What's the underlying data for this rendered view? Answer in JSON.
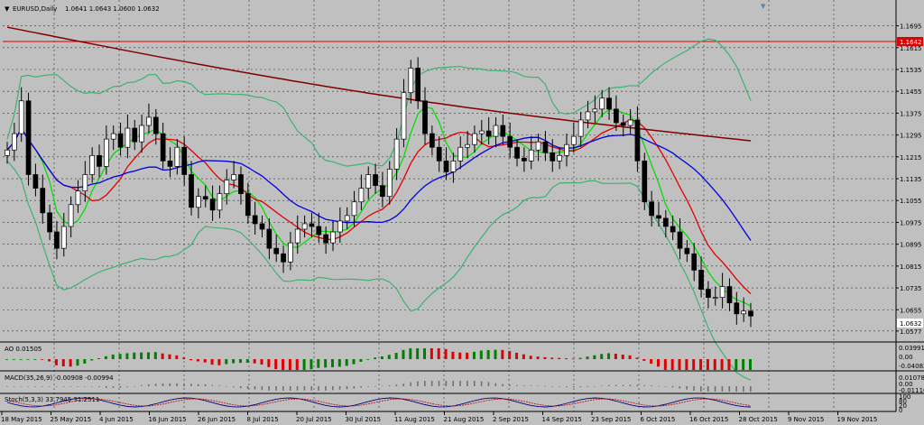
{
  "window": {
    "title": "EURUSD,Daily",
    "ohlc": "1.0641 1.0643 1.0600 1.0632"
  },
  "price_axis": {
    "ticks": [
      "1.1695",
      "1.1615",
      "1.1535",
      "1.1455",
      "1.1375",
      "1.1295",
      "1.1215",
      "1.1135",
      "1.1055",
      "1.0975",
      "1.0895",
      "1.0815",
      "1.0735",
      "1.0655",
      "1.0577"
    ],
    "hline_label": "1.1642",
    "current_label": "1.0632"
  },
  "date_axis": {
    "labels": [
      "18 May 2015",
      "25 May 2015",
      "4 Jun 2015",
      "16 Jun 2015",
      "26 Jun 2015",
      "8 Jul 2015",
      "20 Jul 2015",
      "30 Jul 2015",
      "11 Aug 2015",
      "21 Aug 2015",
      "2 Sep 2015",
      "14 Sep 2015",
      "23 Sep 2015",
      "6 Oct 2015",
      "16 Oct 2015",
      "28 Oct 2015",
      "9 Nov 2015",
      "19 Nov 2015"
    ]
  },
  "indicators": {
    "ao": {
      "title": "AO 0.01505",
      "ticks": [
        "0.03991",
        "0.00",
        "-0.04082"
      ]
    },
    "macd": {
      "title": "MACD(35,26,9) -0.00908 -0.00994",
      "ticks": [
        "0.01078",
        "0.00",
        "-0.01116"
      ]
    },
    "stoch": {
      "title": "Stoch(5,3,3) 33.7945 31.2511",
      "ticks": [
        "100",
        "80",
        "20",
        "0"
      ]
    }
  },
  "colors": {
    "background": "#c0c0c0",
    "bull": "#ffffff",
    "bear": "#000000",
    "bollinger": "#3cb371",
    "ma_fast": "#00e000",
    "ma_mid": "#e00000",
    "ma_slow": "#0000e0",
    "ma_long": "#800000",
    "hline": "#e00000",
    "ao_up": "#008000",
    "ao_down": "#e00000"
  },
  "chart_data": {
    "type": "candlestick",
    "symbol": "EURUSD",
    "timeframe": "Daily",
    "ylim": [
      1.056,
      1.173
    ],
    "horizontal_line": 1.1642,
    "last_price": 1.0632,
    "close": [
      1.124,
      1.13,
      1.142,
      1.115,
      1.11,
      1.101,
      1.094,
      1.088,
      1.096,
      1.104,
      1.109,
      1.115,
      1.122,
      1.118,
      1.128,
      1.13,
      1.125,
      1.132,
      1.127,
      1.133,
      1.136,
      1.13,
      1.12,
      1.118,
      1.125,
      1.115,
      1.103,
      1.107,
      1.106,
      1.102,
      1.108,
      1.113,
      1.115,
      1.108,
      1.1,
      1.097,
      1.095,
      1.088,
      1.086,
      1.083,
      1.09,
      1.095,
      1.097,
      1.096,
      1.093,
      1.09,
      1.094,
      1.098,
      1.1,
      1.105,
      1.11,
      1.115,
      1.111,
      1.107,
      1.117,
      1.128,
      1.145,
      1.154,
      1.142,
      1.13,
      1.125,
      1.12,
      1.116,
      1.12,
      1.125,
      1.126,
      1.13,
      1.131,
      1.129,
      1.133,
      1.129,
      1.125,
      1.121,
      1.12,
      1.124,
      1.127,
      1.123,
      1.12,
      1.122,
      1.126,
      1.129,
      1.135,
      1.138,
      1.139,
      1.143,
      1.139,
      1.134,
      1.133,
      1.135,
      1.12,
      1.105,
      1.1,
      1.099,
      1.096,
      1.094,
      1.088,
      1.086,
      1.08,
      1.073,
      1.07,
      1.07,
      1.074,
      1.068,
      1.064,
      1.065,
      1.0632
    ],
    "series": [
      {
        "name": "Bollinger Bands (upper/lower)",
        "type": "band"
      },
      {
        "name": "MA fast",
        "type": "line"
      },
      {
        "name": "MA medium",
        "type": "line"
      },
      {
        "name": "MA slow",
        "type": "line"
      },
      {
        "name": "MA long",
        "type": "line"
      }
    ],
    "ao_histogram_sign": "positive in early Aug–Sep 2015, negative from mid Oct 2015",
    "grid": true
  }
}
